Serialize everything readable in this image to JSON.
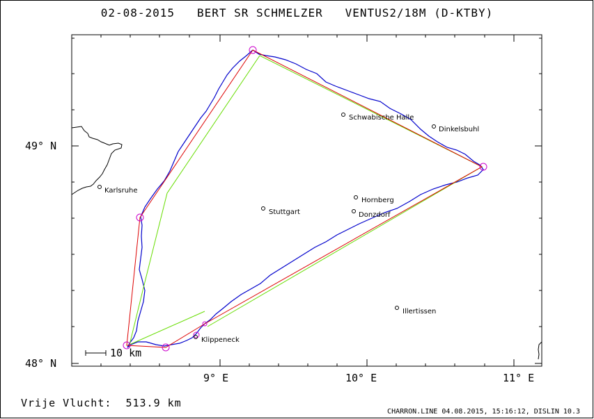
{
  "header": {
    "title": "02-08-2015   BERT SR SCHMELZER   VENTUS2/18M (D-KTBY)"
  },
  "axes": {
    "lat_labels": [
      "49° N",
      "48° N"
    ],
    "lon_labels": [
      "9° E",
      "10° E",
      "11° E"
    ]
  },
  "scale_bar": {
    "label": "10 km"
  },
  "cities": [
    {
      "name": "Karlsruhe"
    },
    {
      "name": "Stuttgart"
    },
    {
      "name": "Schwabische Halle"
    },
    {
      "name": "Dinkelsbuhl"
    },
    {
      "name": "Hornberg"
    },
    {
      "name": "Donzdorf"
    },
    {
      "name": "Illertissen"
    },
    {
      "name": "Klippeneck"
    }
  ],
  "footer": {
    "distance_text": "Vrije Vlucht:  513.9 km",
    "credit": "CHARRON.LINE 04.08.2015, 15:16:12, DISLIN 10.3"
  },
  "colors": {
    "track": "#0000cc",
    "task_line": "#dd0000",
    "optimized_line": "#66dd00",
    "turnpoint": "#cc00cc"
  }
}
